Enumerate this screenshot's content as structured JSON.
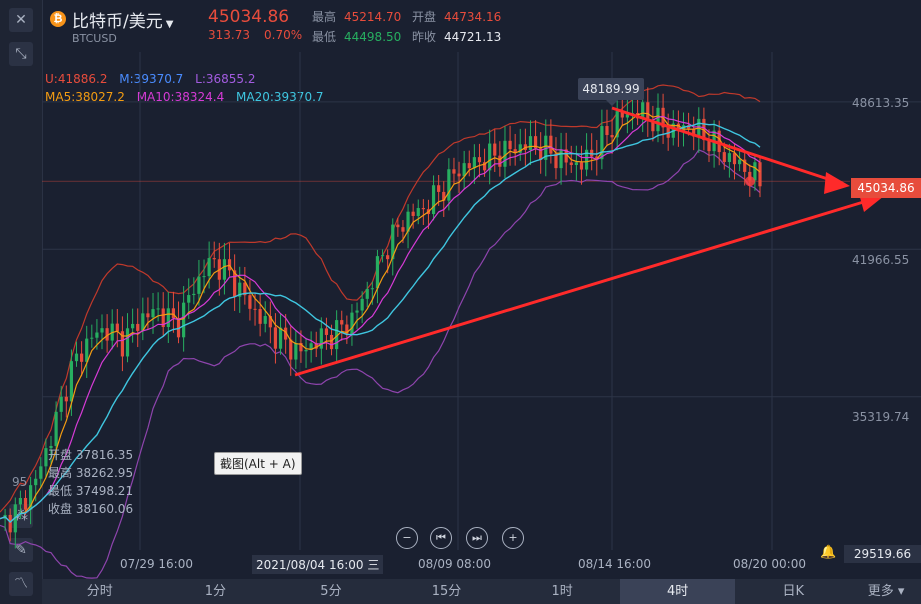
{
  "header": {
    "coin_icon": "bitcoin-icon",
    "title": "比特币/美元",
    "symbol": "BTCUSD",
    "price": "45034.86",
    "change": "313.73",
    "change_pct": "0.70%",
    "high_label": "最高",
    "high": "45214.70",
    "open_label": "开盘",
    "open": "44734.16",
    "low_label": "最低",
    "low": "44498.50",
    "prev_label": "昨收",
    "prev": "44721.13"
  },
  "indicators": {
    "boll_u": "U:41886.2",
    "boll_m": "M:39370.7",
    "boll_l": "L:36855.2",
    "ma5": "MA5:38027.2",
    "ma10": "MA10:38324.4",
    "ma20": "MA20:39370.7"
  },
  "ohlc_box": {
    "open": "开盘 37816.35",
    "high": "最高 38262.95",
    "low": "最低 37498.21",
    "close": "收盘 38160.06"
  },
  "tooltip": "截图(Alt + A)",
  "high_marker": "48189.99",
  "current_price_tag": "45034.86",
  "bottom_price": "29519.66",
  "left_partial_label": "95",
  "colors": {
    "up": "#e74c3c",
    "down": "#27ae60",
    "ma5": "#f39c12",
    "ma10": "#d63bd6",
    "ma20": "#3fc6e0",
    "boll_u": "#c0392b",
    "boll_l": "#8e44ad"
  },
  "tabs": [
    "分时",
    "1分",
    "5分",
    "15分",
    "1时",
    "4时",
    "日K",
    "更多"
  ],
  "active_tab": "4时",
  "chart_data": {
    "type": "candlestick",
    "y_ticks": [
      "48613.35",
      "41966.55",
      "35319.74"
    ],
    "x_ticks": [
      "07/29 16:00",
      "2021/08/04 16:00 三",
      "08/09 08:00",
      "08/14 16:00",
      "08/20 00:00"
    ],
    "ylim": [
      28500,
      50500
    ],
    "close_path": [
      29519.66,
      30200,
      31500,
      33800,
      36500,
      37900,
      38400,
      37800,
      38900,
      39200,
      38500,
      40300,
      41500,
      40800,
      39600,
      38600,
      37800,
      37300,
      37900,
      38200,
      38900,
      40500,
      42300,
      43400,
      43800,
      44700,
      45600,
      45900,
      46200,
      46500,
      46700,
      46400,
      45900,
      45800,
      46800,
      47900,
      48189.99,
      47800,
      47300,
      47500,
      47000,
      46200,
      45700,
      45034.86
    ]
  }
}
